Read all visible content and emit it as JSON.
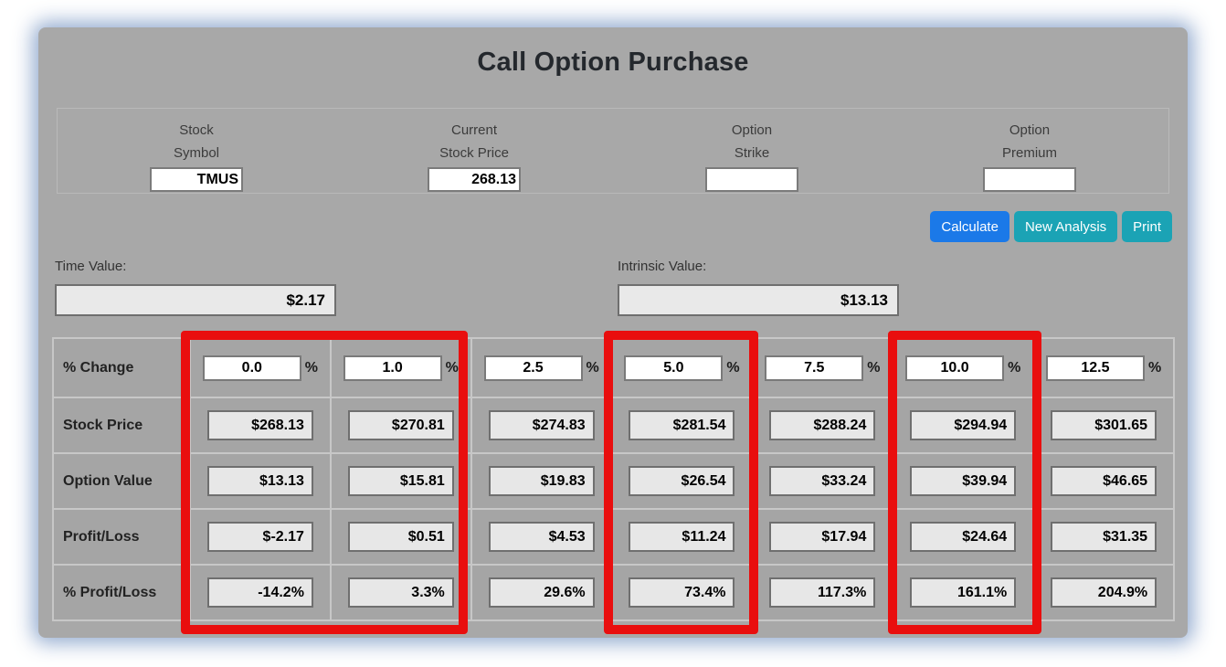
{
  "title": "Call Option Purchase",
  "inputs": [
    {
      "label_line1": "Stock",
      "label_line2": "Symbol",
      "value": "TMUS"
    },
    {
      "label_line1": "Current",
      "label_line2": "Stock Price",
      "value": "268.13"
    },
    {
      "label_line1": "Option",
      "label_line2": "Strike",
      "value": ""
    },
    {
      "label_line1": "Option",
      "label_line2": "Premium",
      "value": ""
    }
  ],
  "buttons": {
    "calculate": "Calculate",
    "new_analysis": "New Analysis",
    "print": "Print"
  },
  "summary": {
    "time_value_label": "Time Value:",
    "time_value": "$2.17",
    "intrinsic_value_label": "Intrinsic Value:",
    "intrinsic_value": "$13.13"
  },
  "table": {
    "percent_suffix": "%",
    "rows": [
      {
        "header": "% Change",
        "values": [
          "0.0",
          "1.0",
          "2.5",
          "5.0",
          "7.5",
          "10.0",
          "12.5"
        ]
      },
      {
        "header": "Stock Price",
        "values": [
          "$268.13",
          "$270.81",
          "$274.83",
          "$281.54",
          "$288.24",
          "$294.94",
          "$301.65"
        ]
      },
      {
        "header": "Option Value",
        "values": [
          "$13.13",
          "$15.81",
          "$19.83",
          "$26.54",
          "$33.24",
          "$39.94",
          "$46.65"
        ]
      },
      {
        "header": "Profit/Loss",
        "values": [
          "$-2.17",
          "$0.51",
          "$4.53",
          "$11.24",
          "$17.94",
          "$24.64",
          "$31.35"
        ]
      },
      {
        "header": "% Profit/Loss",
        "values": [
          "-14.2%",
          "3.3%",
          "29.6%",
          "73.4%",
          "117.3%",
          "161.1%",
          "204.9%"
        ]
      }
    ]
  },
  "annotations": {
    "highlight_color": "#e90e0e",
    "highlighted_percent_columns": [
      "0.0 and 1.0",
      "5.0",
      "10.0"
    ]
  },
  "colors": {
    "panel_background": "#a8a8a8",
    "calculate_button": "#1b79e8",
    "teal_buttons": "#1ba3b5",
    "readonly_field": "#e7e7e7"
  }
}
